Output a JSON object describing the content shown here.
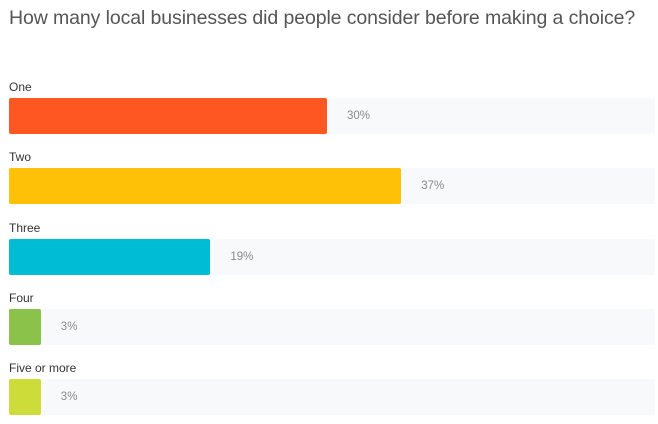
{
  "chart_data": {
    "type": "bar",
    "orientation": "horizontal",
    "title": "How many local businesses did people consider before making a choice?",
    "categories": [
      "One",
      "Two",
      "Three",
      "Four",
      "Five or more"
    ],
    "values": [
      30,
      37,
      19,
      3,
      3
    ],
    "value_labels": [
      "30%",
      "37%",
      "19%",
      "3%",
      "3%"
    ],
    "colors": [
      "#ff5722",
      "#ffc107",
      "#00bcd4",
      "#8bc34a",
      "#cddc39"
    ],
    "xlim": [
      0,
      75
    ],
    "grid": false,
    "legend": "none"
  }
}
